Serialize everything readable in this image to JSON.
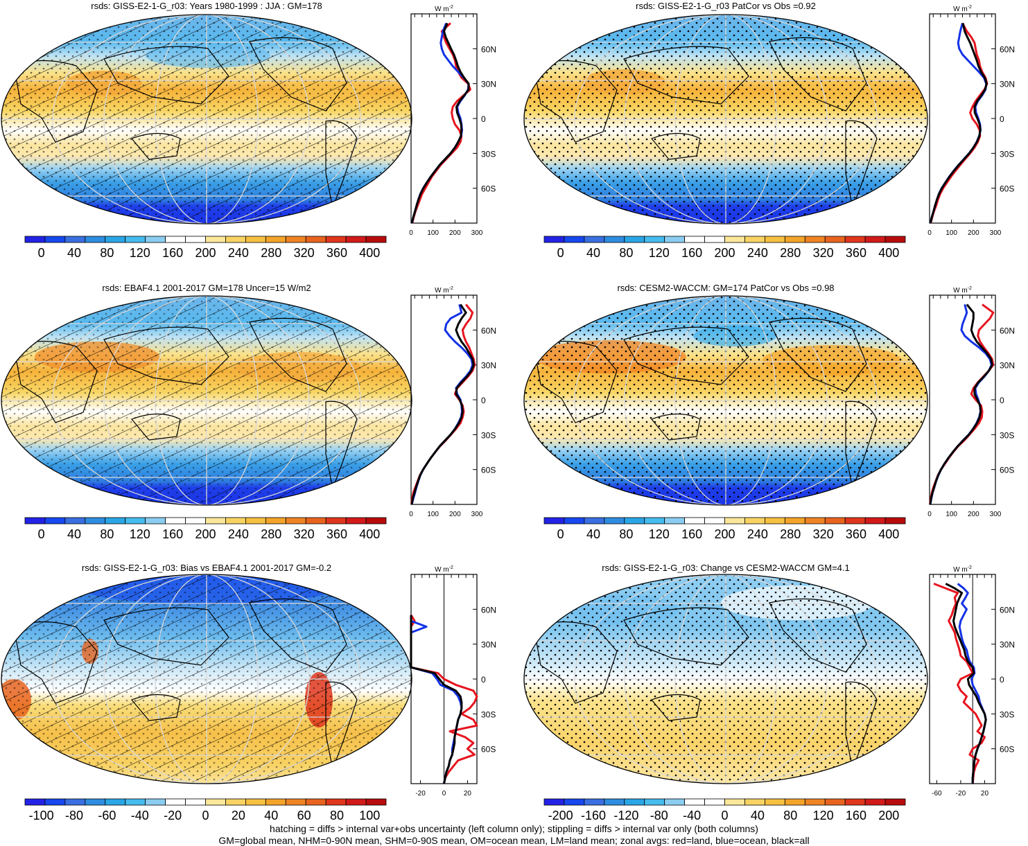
{
  "palette": {
    "diverging": [
      "#2222e6",
      "#1747ef",
      "#3a6fe0",
      "#2e8de0",
      "#2aa6e6",
      "#46bbee",
      "#8acdf0",
      "#ffffff",
      "#ffffff",
      "#fbe79a",
      "#f8d364",
      "#f6c040",
      "#f3a42a",
      "#ef8424",
      "#e8641e",
      "#e0361c",
      "#d21a1a",
      "#b80c0c"
    ],
    "rain_color_land": "#e6141e",
    "rain_color_ocean": "#1432e6",
    "rain_color_all": "#000000",
    "map_border": "#000000",
    "grid": "#d9d9d9"
  },
  "units_label": "W m",
  "units_exp": "-2",
  "footnote": [
    "hatching = diffs > internal var+obs uncertainty (left column only); stippling = diffs > internal var only (both columns)",
    "GM=global mean, NHM=0-90N mean, SHM=0-90S mean, OM=ocean mean, LM=land mean; zonal avgs: red=land, blue=ocean, black=all"
  ],
  "chart_data": [
    {
      "type": "heatmap",
      "panel": "top-left",
      "title": "rsds: GISS-E2-1-G_r03: Years 1980-1999 : JJA : GM=178",
      "overlay": "hatching+stippling",
      "colorbar_labels": [
        "0",
        "40",
        "80",
        "120",
        "160",
        "200",
        "240",
        "280",
        "320",
        "360",
        "400"
      ],
      "colorbar_range": [
        -20,
        420
      ],
      "zonal": {
        "xlim": [
          0,
          300
        ],
        "xticks": [
          "0",
          "100",
          "200",
          "300"
        ],
        "zero_line": false,
        "ylim": [
          -90,
          90
        ],
        "lat_ticks": [
          "60N",
          "30N",
          "0",
          "30S",
          "60S"
        ],
        "lats": [
          82,
          75,
          70,
          65,
          60,
          55,
          50,
          45,
          40,
          35,
          30,
          25,
          20,
          15,
          10,
          5,
          0,
          -5,
          -10,
          -15,
          -20,
          -25,
          -30,
          -35,
          -40,
          -45,
          -50,
          -55,
          -60,
          -65,
          -70,
          -75,
          -80,
          -85,
          -90
        ],
        "land": [
          180,
          140,
          150,
          160,
          175,
          190,
          200,
          205,
          215,
          230,
          260,
          270,
          240,
          210,
          190,
          185,
          190,
          200,
          220,
          230,
          225,
          210,
          185,
          160,
          135,
          115,
          95,
          80,
          65,
          50,
          40,
          30,
          20,
          12,
          5
        ],
        "ocean": [
          160,
          145,
          140,
          135,
          140,
          150,
          170,
          190,
          215,
          240,
          262,
          260,
          245,
          225,
          210,
          215,
          225,
          230,
          232,
          228,
          215,
          200,
          180,
          155,
          130,
          110,
          90,
          72,
          55,
          42,
          33,
          25,
          18,
          10,
          3
        ],
        "all": [
          165,
          150,
          158,
          170,
          182,
          195,
          205,
          213,
          225,
          242,
          262,
          262,
          243,
          222,
          207,
          210,
          220,
          228,
          230,
          227,
          215,
          200,
          180,
          155,
          130,
          110,
          90,
          72,
          56,
          43,
          33,
          25,
          18,
          10,
          4
        ]
      }
    },
    {
      "type": "heatmap",
      "panel": "top-right",
      "title": "rsds: GISS-E2-1-G_r03 PatCor vs Obs =0.92",
      "overlay": "stippling",
      "colorbar_labels": [
        "0",
        "40",
        "80",
        "120",
        "160",
        "200",
        "240",
        "280",
        "320",
        "360",
        "400"
      ],
      "colorbar_range": [
        -20,
        420
      ],
      "zonal": {
        "xlim": [
          0,
          300
        ],
        "xticks": [
          "0",
          "100",
          "200",
          "300"
        ],
        "zero_line": false,
        "ylim": [
          -90,
          90
        ],
        "lat_ticks": [
          "60N",
          "30N",
          "0",
          "30S",
          "60S"
        ],
        "lats": [
          82,
          75,
          70,
          65,
          60,
          55,
          50,
          45,
          40,
          35,
          30,
          25,
          20,
          15,
          10,
          5,
          0,
          -5,
          -10,
          -15,
          -20,
          -25,
          -30,
          -35,
          -40,
          -45,
          -50,
          -55,
          -60,
          -65,
          -70,
          -75,
          -80,
          -85,
          -90
        ],
        "land": [
          150,
          170,
          190,
          205,
          210,
          215,
          225,
          230,
          240,
          255,
          262,
          250,
          230,
          210,
          195,
          185,
          195,
          215,
          228,
          230,
          220,
          205,
          185,
          162,
          140,
          118,
          98,
          80,
          62,
          48,
          38,
          30,
          20,
          12,
          5
        ],
        "ocean": [
          150,
          140,
          135,
          130,
          135,
          150,
          175,
          200,
          225,
          248,
          258,
          255,
          240,
          220,
          208,
          212,
          222,
          230,
          232,
          226,
          215,
          200,
          180,
          156,
          132,
          110,
          90,
          72,
          55,
          42,
          33,
          25,
          18,
          10,
          3
        ],
        "all": [
          152,
          160,
          172,
          185,
          195,
          205,
          215,
          223,
          235,
          252,
          260,
          253,
          237,
          217,
          205,
          206,
          218,
          228,
          231,
          227,
          216,
          200,
          181,
          157,
          133,
          111,
          91,
          73,
          56,
          43,
          33,
          25,
          18,
          10,
          4
        ]
      }
    },
    {
      "type": "heatmap",
      "panel": "middle-left",
      "title": "rsds: EBAF4.1 2001-2017 GM=178 Uncer=15 W/m2",
      "overlay": "hatching+stippling",
      "colorbar_labels": [
        "0",
        "40",
        "80",
        "120",
        "160",
        "200",
        "240",
        "280",
        "320",
        "360",
        "400"
      ],
      "colorbar_range": [
        -20,
        420
      ],
      "zonal": {
        "xlim": [
          0,
          300
        ],
        "xticks": [
          "0",
          "100",
          "200",
          "300"
        ],
        "zero_line": false,
        "ylim": [
          -90,
          90
        ],
        "lat_ticks": [
          "60N",
          "30N",
          "0",
          "30S",
          "60S"
        ],
        "lats": [
          82,
          75,
          70,
          65,
          60,
          55,
          50,
          45,
          40,
          35,
          30,
          25,
          20,
          15,
          10,
          5,
          0,
          -5,
          -10,
          -15,
          -20,
          -25,
          -30,
          -35,
          -40,
          -45,
          -50,
          -55,
          -60,
          -65,
          -70,
          -75,
          -80,
          -85,
          -90
        ],
        "land": [
          250,
          280,
          270,
          250,
          235,
          240,
          250,
          265,
          275,
          285,
          290,
          280,
          260,
          235,
          210,
          200,
          220,
          235,
          240,
          235,
          225,
          205,
          182,
          158,
          132,
          110,
          90,
          72,
          55,
          40,
          30,
          20,
          10,
          5,
          2
        ],
        "ocean": [
          220,
          230,
          180,
          160,
          155,
          175,
          200,
          230,
          255,
          275,
          280,
          270,
          250,
          225,
          205,
          210,
          225,
          230,
          232,
          228,
          215,
          200,
          180,
          155,
          130,
          110,
          90,
          72,
          55,
          42,
          33,
          25,
          18,
          10,
          3
        ],
        "all": [
          225,
          250,
          230,
          215,
          205,
          215,
          230,
          250,
          265,
          280,
          285,
          275,
          255,
          230,
          208,
          205,
          222,
          232,
          235,
          230,
          218,
          201,
          180,
          155,
          130,
          110,
          90,
          72,
          55,
          41,
          32,
          23,
          15,
          8,
          3
        ]
      }
    },
    {
      "type": "heatmap",
      "panel": "middle-right",
      "title": "rsds: CESM2-WACCM: GM=174 PatCor vs Obs =0.98",
      "overlay": "stippling",
      "colorbar_labels": [
        "0",
        "40",
        "80",
        "120",
        "160",
        "200",
        "240",
        "280",
        "320",
        "360",
        "400"
      ],
      "colorbar_range": [
        -20,
        420
      ],
      "zonal": {
        "xlim": [
          0,
          300
        ],
        "xticks": [
          "0",
          "100",
          "200",
          "300"
        ],
        "zero_line": false,
        "ylim": [
          -90,
          90
        ],
        "lat_ticks": [
          "60N",
          "30N",
          "0",
          "30S",
          "60S"
        ],
        "lats": [
          82,
          75,
          70,
          65,
          60,
          55,
          50,
          45,
          40,
          35,
          30,
          25,
          20,
          15,
          10,
          5,
          0,
          -5,
          -10,
          -15,
          -20,
          -25,
          -30,
          -35,
          -40,
          -45,
          -50,
          -55,
          -60,
          -65,
          -70,
          -75,
          -80,
          -85,
          -90
        ],
        "land": [
          240,
          290,
          275,
          250,
          225,
          220,
          230,
          248,
          268,
          285,
          290,
          270,
          245,
          220,
          200,
          190,
          210,
          235,
          240,
          238,
          225,
          205,
          182,
          158,
          130,
          108,
          88,
          70,
          52,
          38,
          28,
          18,
          10,
          5,
          2
        ],
        "ocean": [
          160,
          170,
          160,
          150,
          145,
          160,
          190,
          225,
          255,
          275,
          282,
          270,
          250,
          225,
          208,
          212,
          222,
          230,
          232,
          226,
          214,
          198,
          178,
          152,
          128,
          106,
          86,
          68,
          52,
          40,
          30,
          22,
          14,
          8,
          3
        ],
        "all": [
          170,
          200,
          200,
          195,
          190,
          200,
          215,
          238,
          262,
          280,
          285,
          270,
          248,
          222,
          205,
          205,
          218,
          230,
          233,
          228,
          216,
          199,
          179,
          153,
          128,
          106,
          86,
          68,
          52,
          39,
          29,
          21,
          13,
          7,
          3
        ]
      }
    },
    {
      "type": "heatmap",
      "panel": "bottom-left",
      "title": "rsds: GISS-E2-1-G_r03: Bias vs EBAF4.1 2001-2017 GM=-0.2",
      "overlay": "hatching+stippling",
      "colorbar_labels": [
        "-100",
        "-80",
        "-60",
        "-40",
        "-20",
        "0",
        "20",
        "40",
        "60",
        "80",
        "100"
      ],
      "colorbar_range": [
        -110,
        110
      ],
      "zonal": {
        "xlim": [
          -28,
          28
        ],
        "xticks": [
          "-20",
          "0",
          "20"
        ],
        "zero_line": true,
        "ylim": [
          -90,
          90
        ],
        "lat_ticks": [
          "60N",
          "30N",
          "0",
          "30S",
          "60S"
        ],
        "lats": [
          55,
          50,
          45,
          40,
          35,
          30,
          25,
          20,
          15,
          10,
          5,
          0,
          -5,
          -10,
          -15,
          -20,
          -25,
          -30,
          -35,
          -40,
          -45,
          -50,
          -55,
          -60,
          -65,
          -70,
          -75,
          -80,
          -85,
          -90
        ],
        "land": [
          -30,
          -25,
          -28,
          -35,
          -45,
          -35,
          -55,
          -50,
          -60,
          -40,
          -5,
          0,
          10,
          25,
          28,
          26,
          22,
          15,
          25,
          28,
          5,
          18,
          25,
          20,
          26,
          12,
          8,
          4,
          1,
          0
        ],
        "ocean": [
          -32,
          -28,
          -15,
          -50,
          -40,
          -35,
          -40,
          -45,
          -50,
          -30,
          -10,
          -6,
          -3,
          8,
          12,
          14,
          15,
          14,
          12,
          11,
          10,
          9,
          8,
          7,
          7,
          5,
          4,
          2,
          1,
          0
        ],
        "all": [
          -60,
          -60,
          -55,
          -50,
          -45,
          -42,
          -45,
          -48,
          -52,
          -30,
          -8,
          -4,
          0,
          10,
          14,
          15,
          15,
          14,
          12,
          11,
          10,
          9,
          9,
          8,
          7,
          5,
          4,
          2,
          1,
          0
        ]
      }
    },
    {
      "type": "heatmap",
      "panel": "bottom-right",
      "title": "rsds: GISS-E2-1-G_r03: Change vs CESM2-WACCM GM=4.1",
      "overlay": "stippling",
      "colorbar_labels": [
        "-200",
        "-160",
        "-120",
        "-80",
        "-40",
        "0",
        "40",
        "80",
        "120",
        "160",
        "200"
      ],
      "colorbar_range": [
        -220,
        220
      ],
      "zonal": {
        "xlim": [
          -72,
          38
        ],
        "xticks": [
          "-60",
          "-20",
          "20"
        ],
        "zero_line": true,
        "ylim": [
          -90,
          90
        ],
        "lat_ticks": [
          "60N",
          "30N",
          "0",
          "30S",
          "60S"
        ],
        "lats": [
          82,
          78,
          74,
          70,
          65,
          60,
          55,
          50,
          45,
          40,
          35,
          30,
          25,
          20,
          15,
          10,
          5,
          0,
          -5,
          -10,
          -15,
          -20,
          -25,
          -30,
          -35,
          -40,
          -45,
          -50,
          -55,
          -60,
          -65,
          -70,
          -75,
          -80,
          -85,
          -90
        ],
        "land": [
          -65,
          -45,
          -25,
          -30,
          -28,
          -32,
          -35,
          -40,
          -35,
          -30,
          -28,
          -25,
          -22,
          -20,
          -10,
          -5,
          0,
          -20,
          -25,
          -20,
          -10,
          -15,
          -5,
          5,
          10,
          15,
          8,
          20,
          15,
          0,
          -5,
          10,
          5,
          2,
          1,
          0
        ],
        "ocean": [
          -25,
          -15,
          -8,
          -12,
          -18,
          -10,
          -15,
          -20,
          -22,
          -20,
          -18,
          -15,
          -10,
          -8,
          -5,
          2,
          3,
          -2,
          0,
          5,
          10,
          12,
          16,
          20,
          22,
          20,
          18,
          15,
          12,
          8,
          5,
          3,
          2,
          1,
          0,
          0
        ],
        "all": [
          -45,
          -30,
          -18,
          -22,
          -26,
          -28,
          -30,
          -32,
          -30,
          -26,
          -22,
          -18,
          -14,
          -12,
          -8,
          0,
          2,
          -8,
          -6,
          0,
          6,
          10,
          15,
          20,
          22,
          20,
          18,
          15,
          12,
          8,
          5,
          3,
          2,
          1,
          0,
          0
        ]
      }
    }
  ]
}
